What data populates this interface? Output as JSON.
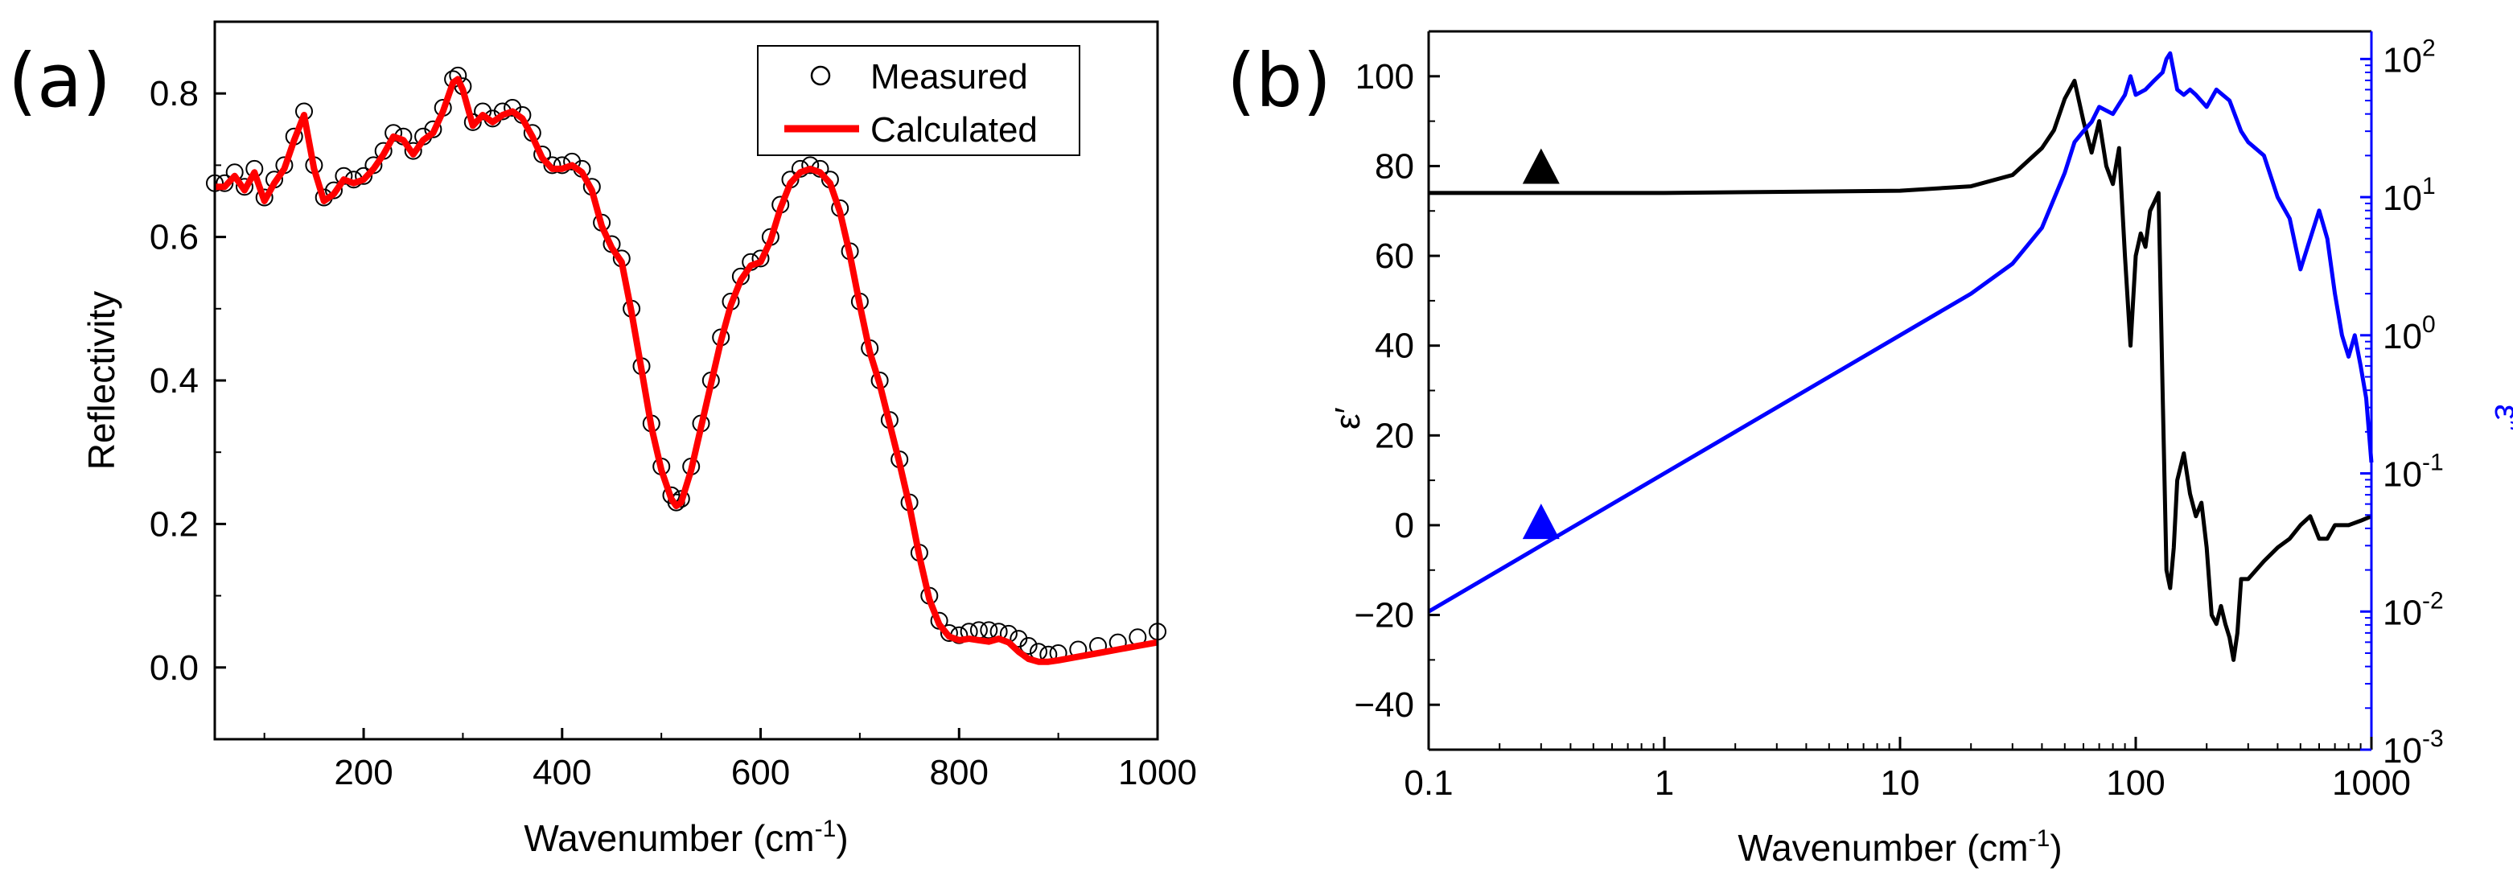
{
  "colors": {
    "black": "#000000",
    "red": "#ff0000",
    "blue": "#0000ff"
  },
  "chart_data": [
    {
      "panel_label": "(a)",
      "type": "scatter+line",
      "title": "",
      "xlabel": "Wavenumber (cm",
      "xlabel_sup": "-1",
      "xlabel_close": ")",
      "ylabel": "Reflectivity",
      "xlim": [
        50,
        1000
      ],
      "ylim": [
        -0.1,
        0.9
      ],
      "x_ticks": [
        200,
        400,
        600,
        800,
        1000
      ],
      "x_tick_labels": [
        "200",
        "400",
        "600",
        "800",
        "1000"
      ],
      "y_ticks": [
        0.0,
        0.2,
        0.4,
        0.6,
        0.8
      ],
      "y_tick_labels": [
        "0.0",
        "0.2",
        "0.4",
        "0.6",
        "0.8"
      ],
      "legend_position": "top-right",
      "series": [
        {
          "name": "Measured",
          "style": "open-circles",
          "color": "#000000",
          "x": [
            50,
            60,
            70,
            80,
            90,
            100,
            110,
            120,
            130,
            140,
            150,
            160,
            170,
            180,
            190,
            200,
            210,
            220,
            230,
            240,
            250,
            260,
            270,
            280,
            290,
            295,
            300,
            310,
            320,
            330,
            340,
            350,
            360,
            370,
            380,
            390,
            400,
            410,
            420,
            430,
            440,
            450,
            460,
            470,
            480,
            490,
            500,
            510,
            515,
            520,
            530,
            540,
            550,
            560,
            570,
            580,
            590,
            600,
            610,
            620,
            630,
            640,
            650,
            660,
            670,
            680,
            690,
            700,
            710,
            720,
            730,
            740,
            750,
            760,
            770,
            780,
            790,
            800,
            810,
            820,
            830,
            840,
            850,
            860,
            870,
            880,
            890,
            900,
            920,
            940,
            960,
            980,
            1000
          ],
          "y": [
            0.675,
            0.675,
            0.69,
            0.67,
            0.695,
            0.655,
            0.68,
            0.7,
            0.74,
            0.775,
            0.7,
            0.655,
            0.665,
            0.685,
            0.68,
            0.685,
            0.7,
            0.72,
            0.745,
            0.74,
            0.72,
            0.74,
            0.75,
            0.78,
            0.82,
            0.825,
            0.81,
            0.76,
            0.775,
            0.765,
            0.775,
            0.78,
            0.77,
            0.745,
            0.715,
            0.7,
            0.7,
            0.705,
            0.695,
            0.67,
            0.62,
            0.59,
            0.57,
            0.5,
            0.42,
            0.34,
            0.28,
            0.24,
            0.23,
            0.235,
            0.28,
            0.34,
            0.4,
            0.46,
            0.51,
            0.545,
            0.565,
            0.57,
            0.6,
            0.645,
            0.68,
            0.695,
            0.7,
            0.695,
            0.68,
            0.64,
            0.58,
            0.51,
            0.445,
            0.4,
            0.345,
            0.29,
            0.23,
            0.16,
            0.1,
            0.065,
            0.048,
            0.045,
            0.05,
            0.052,
            0.052,
            0.05,
            0.047,
            0.04,
            0.03,
            0.022,
            0.018,
            0.02,
            0.025,
            0.03,
            0.035,
            0.042,
            0.05
          ]
        },
        {
          "name": "Calculated",
          "style": "line",
          "color": "#ff0000",
          "x": [
            50,
            60,
            70,
            80,
            90,
            100,
            110,
            120,
            130,
            140,
            150,
            160,
            170,
            180,
            190,
            200,
            210,
            220,
            230,
            240,
            250,
            260,
            270,
            280,
            290,
            295,
            300,
            310,
            320,
            330,
            340,
            350,
            360,
            370,
            380,
            390,
            400,
            410,
            420,
            430,
            440,
            450,
            460,
            470,
            480,
            490,
            500,
            510,
            515,
            520,
            530,
            540,
            550,
            560,
            570,
            580,
            590,
            600,
            610,
            620,
            630,
            640,
            650,
            660,
            670,
            680,
            690,
            700,
            710,
            720,
            730,
            740,
            750,
            760,
            770,
            780,
            790,
            800,
            810,
            820,
            830,
            840,
            850,
            860,
            870,
            880,
            890,
            900,
            920,
            940,
            960,
            980,
            1000
          ],
          "y": [
            0.67,
            0.67,
            0.685,
            0.665,
            0.69,
            0.65,
            0.675,
            0.695,
            0.735,
            0.77,
            0.695,
            0.65,
            0.66,
            0.68,
            0.675,
            0.68,
            0.695,
            0.715,
            0.74,
            0.735,
            0.715,
            0.735,
            0.745,
            0.775,
            0.815,
            0.82,
            0.805,
            0.755,
            0.77,
            0.76,
            0.77,
            0.775,
            0.765,
            0.74,
            0.71,
            0.695,
            0.695,
            0.7,
            0.69,
            0.665,
            0.615,
            0.585,
            0.565,
            0.495,
            0.415,
            0.335,
            0.275,
            0.235,
            0.225,
            0.23,
            0.275,
            0.335,
            0.395,
            0.455,
            0.505,
            0.54,
            0.56,
            0.565,
            0.595,
            0.64,
            0.675,
            0.69,
            0.695,
            0.69,
            0.675,
            0.635,
            0.575,
            0.505,
            0.44,
            0.395,
            0.34,
            0.285,
            0.225,
            0.155,
            0.095,
            0.06,
            0.043,
            0.038,
            0.04,
            0.038,
            0.036,
            0.04,
            0.035,
            0.022,
            0.012,
            0.008,
            0.008,
            0.01,
            0.015,
            0.02,
            0.025,
            0.03,
            0.035
          ]
        }
      ]
    },
    {
      "panel_label": "(b)",
      "type": "line",
      "title": "",
      "xscale": "log",
      "xlabel": "Wavenumber (cm",
      "xlabel_sup": "-1",
      "xlabel_close": ")",
      "ylabel_left": "ε′",
      "ylabel_right": "ε″",
      "xlim": [
        0.1,
        1000
      ],
      "ylim_left": [
        -50,
        110
      ],
      "ylim_right_log10": [
        -3,
        2.2
      ],
      "x_ticks": [
        0.1,
        1,
        10,
        100,
        1000
      ],
      "x_tick_labels": [
        "0.1",
        "1",
        "10",
        "100",
        "1000"
      ],
      "y_ticks_left": [
        -40,
        -20,
        0,
        20,
        40,
        60,
        80,
        100
      ],
      "y_tick_labels_left": [
        "−40",
        "−20",
        "0",
        "20",
        "40",
        "60",
        "80",
        "100"
      ],
      "y_ticks_right": [
        {
          "base": "10",
          "exp": "-3"
        },
        {
          "base": "10",
          "exp": "-2"
        },
        {
          "base": "10",
          "exp": "-1"
        },
        {
          "base": "10",
          "exp": "0"
        },
        {
          "base": "10",
          "exp": "1"
        },
        {
          "base": "10",
          "exp": "2"
        }
      ],
      "y_tick_values_right": [
        0.001,
        0.01,
        0.1,
        1,
        10,
        100
      ],
      "markers": [
        {
          "name": "epsilon-prime-marker",
          "shape": "triangle",
          "color": "#000000",
          "x": 0.3,
          "y": 80,
          "axis": "left"
        },
        {
          "name": "epsilon-double-prime-marker",
          "shape": "triangle",
          "color": "#0000ff",
          "x": 0.3,
          "y": 0.045,
          "axis": "right"
        }
      ],
      "series": [
        {
          "name": "ε′",
          "axis": "left",
          "color": "#000000",
          "x": [
            0.1,
            1,
            10,
            20,
            30,
            40,
            45,
            50,
            55,
            60,
            65,
            70,
            75,
            80,
            85,
            90,
            95,
            100,
            105,
            110,
            115,
            120,
            125,
            130,
            135,
            140,
            145,
            150,
            160,
            170,
            180,
            190,
            200,
            210,
            220,
            230,
            240,
            250,
            260,
            270,
            280,
            290,
            300,
            350,
            400,
            450,
            500,
            550,
            600,
            650,
            700,
            800,
            900,
            1000
          ],
          "y": [
            74,
            74,
            74.5,
            75.5,
            78,
            84,
            88,
            95,
            99,
            90,
            83,
            90,
            80,
            76,
            84,
            60,
            40,
            60,
            65,
            62,
            70,
            72,
            74,
            30,
            -10,
            -14,
            -5,
            10,
            16,
            7,
            2,
            5,
            -5,
            -20,
            -22,
            -18,
            -22,
            -25,
            -30,
            -24,
            -12,
            -12,
            -12,
            -8,
            -5,
            -3,
            0,
            2,
            -3,
            -3,
            0,
            0,
            1,
            2
          ]
        },
        {
          "name": "ε″",
          "axis": "right",
          "color": "#0000ff",
          "x": [
            0.1,
            1,
            10,
            20,
            30,
            40,
            50,
            55,
            60,
            65,
            70,
            80,
            90,
            95,
            100,
            110,
            120,
            130,
            135,
            140,
            150,
            160,
            170,
            180,
            200,
            220,
            250,
            280,
            300,
            350,
            400,
            450,
            500,
            550,
            600,
            650,
            700,
            750,
            800,
            850,
            900,
            950,
            1000
          ],
          "y": [
            0.01,
            0.1,
            1,
            2,
            3.3,
            6,
            15,
            25,
            30,
            35,
            45,
            40,
            55,
            75,
            55,
            60,
            70,
            80,
            100,
            110,
            60,
            55,
            60,
            55,
            45,
            60,
            50,
            30,
            25,
            20,
            10,
            7,
            3,
            5,
            8,
            5,
            2,
            1,
            0.7,
            1,
            0.6,
            0.35,
            0.12
          ]
        }
      ]
    }
  ]
}
